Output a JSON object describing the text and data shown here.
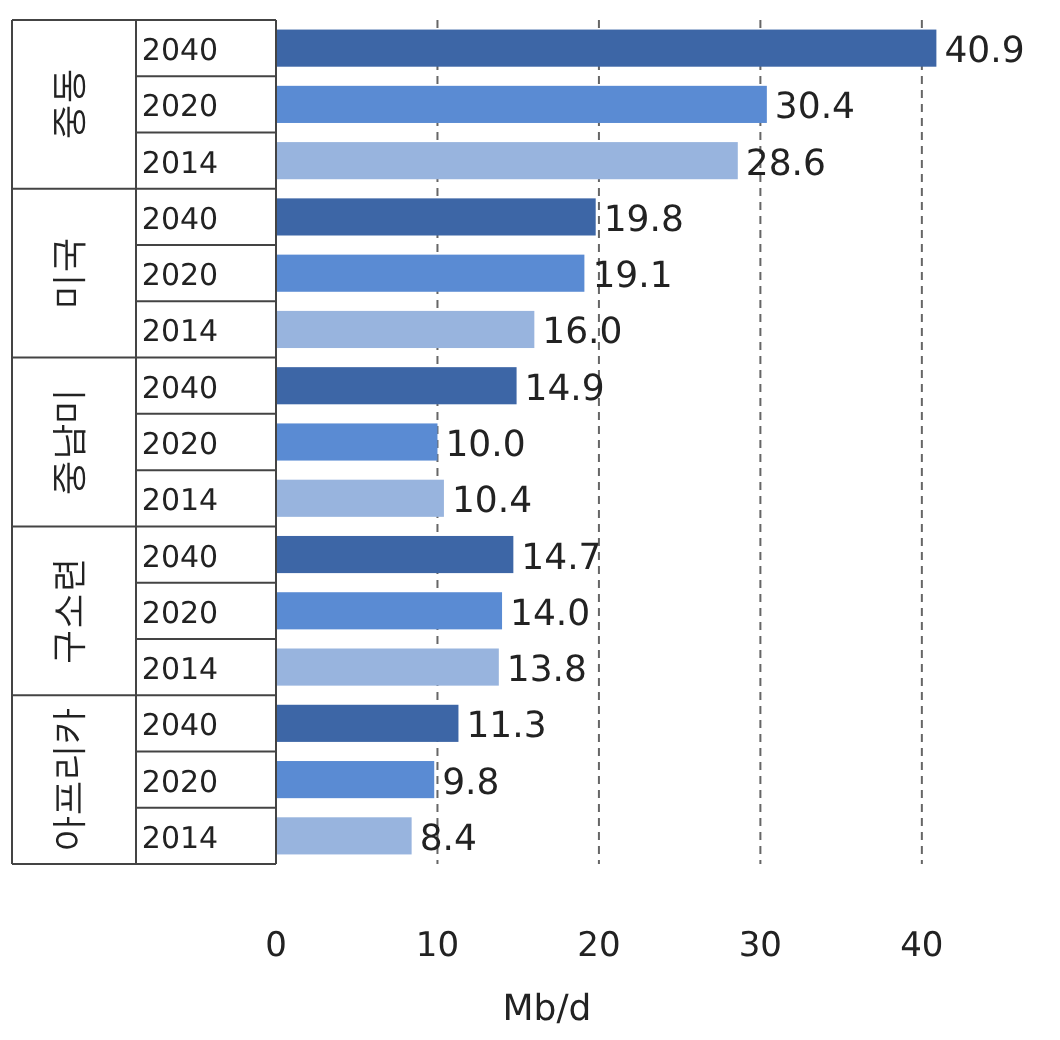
{
  "chart_data": {
    "type": "bar",
    "orientation": "horizontal",
    "categories": [
      "중동",
      "미국",
      "중남미",
      "구소련",
      "아프리카"
    ],
    "series": [
      {
        "name": "2040",
        "color": "#3d66a6",
        "values": [
          40.9,
          19.8,
          14.9,
          14.7,
          11.3
        ]
      },
      {
        "name": "2020",
        "color": "#5a8bd3",
        "values": [
          30.4,
          19.1,
          10.0,
          14.0,
          9.8
        ]
      },
      {
        "name": "2014",
        "color": "#98b4de",
        "values": [
          28.6,
          16.0,
          10.4,
          13.8,
          8.4
        ]
      }
    ],
    "value_labels": [
      [
        "40.9",
        "19.8",
        "14.9",
        "14.7",
        "11.3"
      ],
      [
        "30.4",
        "19.1",
        "10.0",
        "14.0",
        "9.8"
      ],
      [
        "28.6",
        "16.0",
        "10.4",
        "13.8",
        "8.4"
      ]
    ],
    "xlim": [
      0,
      41
    ],
    "xticks": [
      0,
      10,
      20,
      30,
      40
    ],
    "xlabel": "Mb/d",
    "grid": "x"
  }
}
